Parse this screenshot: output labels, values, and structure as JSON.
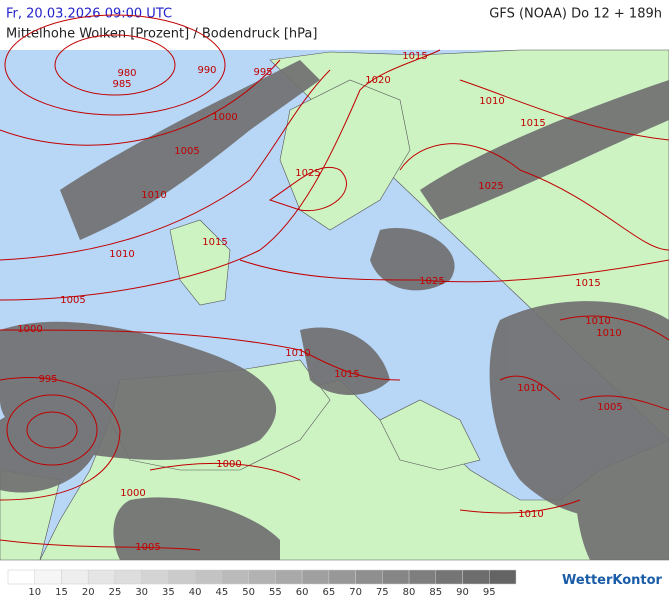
{
  "header": {
    "datetime": "Fr, 20.03.2026 09:00 UTC",
    "model": "GFS (NOAA) Do 12 + 189h",
    "subtitle": "Mittelhohe Wolken [Prozent] / Bodendruck [hPa]"
  },
  "isobar_labels": [
    "980",
    "985",
    "990",
    "995",
    "1015",
    "1020",
    "1010",
    "1015",
    "1000",
    "1005",
    "1010",
    "1025",
    "1025",
    "1015",
    "1010",
    "1025",
    "1015",
    "1005",
    "1000",
    "1010",
    "1010",
    "1010",
    "1015",
    "995",
    "1010",
    "1005",
    "1000",
    "1000",
    "1010",
    "1005"
  ],
  "legend": {
    "ticks": [
      10,
      15,
      20,
      25,
      30,
      35,
      40,
      45,
      50,
      55,
      60,
      65,
      70,
      75,
      80,
      85,
      90,
      95
    ]
  },
  "brand": "WetterKontor"
}
